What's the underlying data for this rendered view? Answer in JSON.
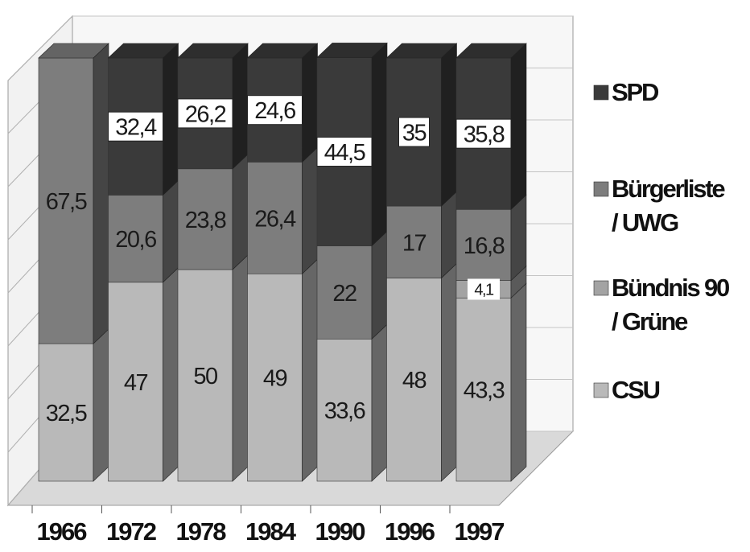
{
  "chart_data": {
    "type": "bar",
    "stacked": true,
    "three_d": true,
    "categories": [
      "1966",
      "1972",
      "1978",
      "1984",
      "1990",
      "1996",
      "1997"
    ],
    "series": [
      {
        "name": "CSU",
        "values": [
          32.5,
          47,
          50,
          49,
          33.6,
          48,
          43.3
        ],
        "labels": [
          "32,5",
          "47",
          "50",
          "49",
          "33,6",
          "48",
          "43,3"
        ],
        "color": "#b9b9b9"
      },
      {
        "name": "Bündnis 90 / Grüne",
        "values": [
          null,
          null,
          null,
          null,
          null,
          null,
          4.1
        ],
        "labels": [
          "",
          "",
          "",
          "",
          "",
          "",
          "4,1"
        ],
        "color": "#a3a3a3"
      },
      {
        "name": "Bürgerliste / UWG",
        "values": [
          67.5,
          20.6,
          23.8,
          26.4,
          22,
          17,
          16.8
        ],
        "labels": [
          "67,5",
          "20,6",
          "23,8",
          "26,4",
          "22",
          "17",
          "16,8"
        ],
        "color": "#7d7d7d"
      },
      {
        "name": "SPD",
        "values": [
          null,
          32.4,
          26.2,
          24.6,
          44.5,
          35,
          35.8
        ],
        "labels": [
          "",
          "32,4",
          "26,2",
          "24,6",
          "44,5",
          "35",
          "35,8"
        ],
        "color": "#3a3a3a"
      }
    ],
    "legend": {
      "position": "right",
      "order": [
        "SPD",
        "Bürgerliste / UWG",
        "Bündnis 90 / Grüne",
        "CSU"
      ],
      "lines": [
        [
          "SPD"
        ],
        [
          "Bürgerliste",
          "/ UWG"
        ],
        [
          "Bündnis 90",
          "/ Grüne"
        ],
        [
          "CSU"
        ]
      ]
    },
    "ylim": [
      0,
      100
    ],
    "grid": true,
    "xlabel": "",
    "ylabel": "",
    "title": ""
  }
}
